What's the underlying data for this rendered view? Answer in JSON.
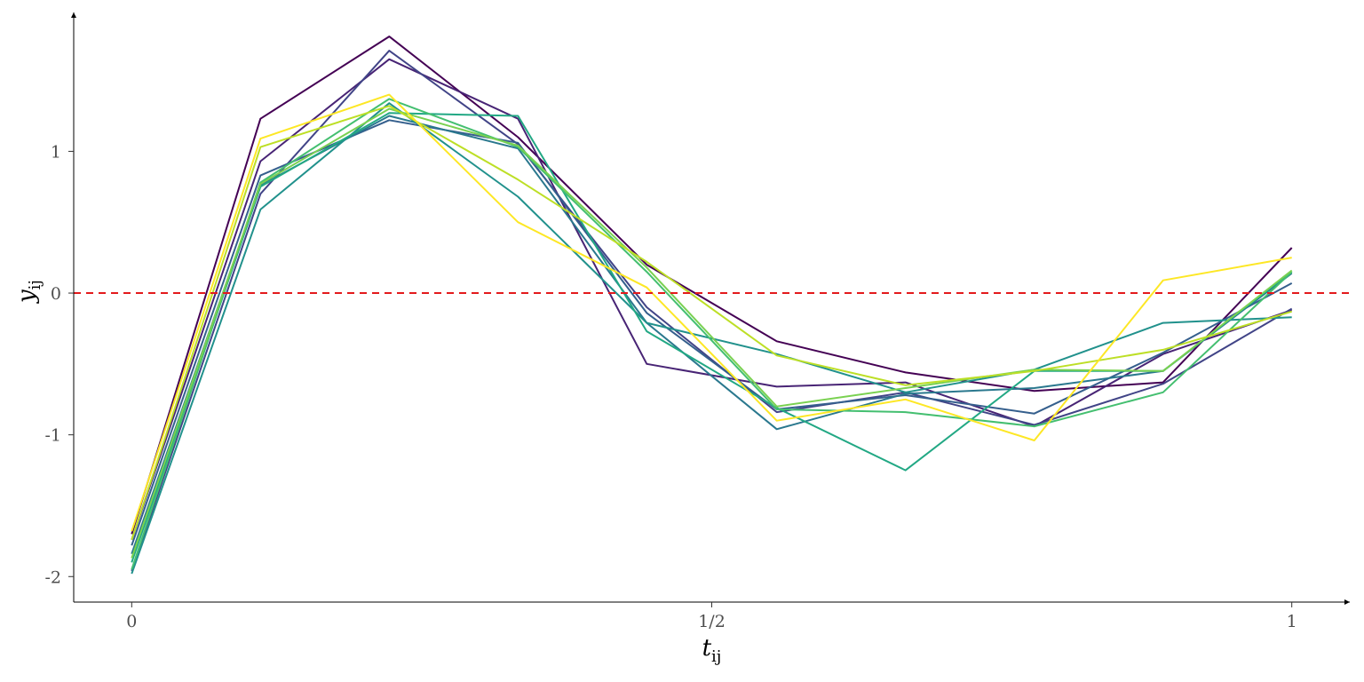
{
  "chart_data": {
    "type": "line",
    "xlabel": "t",
    "xlabel_sub": "ij",
    "ylabel": "y",
    "ylabel_sub": "ij",
    "xlim": [
      -0.05,
      1.05
    ],
    "ylim": [
      -2.18,
      1.98
    ],
    "x_ticks": [
      {
        "value": 0,
        "label": "0"
      },
      {
        "value": 0.5,
        "label": "1/2"
      },
      {
        "value": 1,
        "label": "1"
      }
    ],
    "y_ticks": [
      {
        "value": -2,
        "label": "-2"
      },
      {
        "value": -1,
        "label": "-1"
      },
      {
        "value": 0,
        "label": "0"
      },
      {
        "value": 1,
        "label": "1"
      }
    ],
    "reference_line": {
      "y": 0,
      "color": "#e31a1c",
      "style": "dashed"
    },
    "grid": false,
    "legend": "none",
    "x": [
      0,
      0.111,
      0.222,
      0.333,
      0.444,
      0.556,
      0.667,
      0.778,
      0.889,
      1.0
    ],
    "series": [
      {
        "color": "#440154",
        "values": [
          -1.7,
          1.23,
          1.81,
          1.1,
          0.2,
          -0.34,
          -0.56,
          -0.69,
          -0.63,
          0.32
        ]
      },
      {
        "color": "#482475",
        "values": [
          -1.74,
          0.93,
          1.65,
          1.23,
          -0.5,
          -0.66,
          -0.63,
          -0.94,
          -0.43,
          -0.12
        ]
      },
      {
        "color": "#414487",
        "values": [
          -1.96,
          0.7,
          1.71,
          1.05,
          -0.1,
          -0.84,
          -0.7,
          -0.93,
          -0.64,
          -0.11
        ]
      },
      {
        "color": "#355f8d",
        "values": [
          -1.78,
          0.83,
          1.22,
          1.06,
          -0.14,
          -0.82,
          -0.72,
          -0.85,
          -0.42,
          0.07
        ]
      },
      {
        "color": "#2a788e",
        "values": [
          -1.84,
          0.76,
          1.25,
          1.02,
          -0.21,
          -0.96,
          -0.71,
          -0.67,
          -0.55,
          0.14
        ]
      },
      {
        "color": "#21918c",
        "values": [
          -1.98,
          0.59,
          1.34,
          0.68,
          -0.21,
          -0.43,
          -0.7,
          -0.54,
          -0.21,
          -0.17
        ]
      },
      {
        "color": "#22a884",
        "values": [
          -1.9,
          0.75,
          1.27,
          1.25,
          -0.27,
          -0.81,
          -1.25,
          -0.55,
          -0.55,
          0.15
        ]
      },
      {
        "color": "#44bf70",
        "values": [
          -1.95,
          0.78,
          1.37,
          1.03,
          0.15,
          -0.82,
          -0.84,
          -0.94,
          -0.7,
          0.15
        ]
      },
      {
        "color": "#7ad151",
        "values": [
          -1.87,
          0.77,
          1.3,
          1.04,
          0.18,
          -0.8,
          -0.67,
          -0.54,
          -0.55,
          0.16
        ]
      },
      {
        "color": "#bddf26",
        "values": [
          -1.74,
          1.03,
          1.32,
          0.8,
          0.22,
          -0.44,
          -0.65,
          -0.55,
          -0.4,
          -0.13
        ]
      },
      {
        "color": "#fde725",
        "values": [
          -1.68,
          1.09,
          1.4,
          0.5,
          0.04,
          -0.9,
          -0.75,
          -1.04,
          0.09,
          0.25
        ]
      }
    ]
  }
}
